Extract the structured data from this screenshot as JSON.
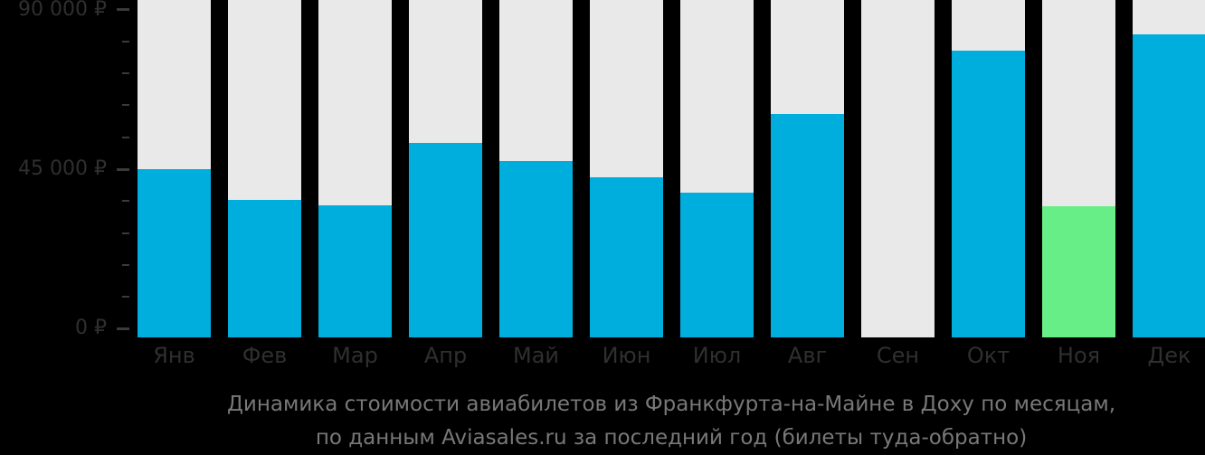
{
  "caption": {
    "line1": "Динамика стоимости авиабилетов из Франкфурта-на-Майне в Доху по месяцам,",
    "line2": "по данным Aviasales.ru за последний год (билеты туда-обратно)"
  },
  "chart_data": {
    "type": "bar",
    "title": "Динамика стоимости авиабилетов из Франкфурта-на-Майне в Доху по месяцам, по данным Aviasales.ru за последний год (билеты туда-обратно)",
    "categories": [
      "Янв",
      "Фев",
      "Мар",
      "Апр",
      "Май",
      "Июн",
      "Июл",
      "Авг",
      "Сен",
      "Окт",
      "Ноя",
      "Дек"
    ],
    "values": [
      45000,
      36400,
      34900,
      52500,
      47300,
      42700,
      38300,
      60600,
      null,
      78500,
      34500,
      83100
    ],
    "unit": "₽",
    "xlabel": "",
    "ylabel": "",
    "ylim": [
      0,
      92500
    ],
    "y_ticks": [
      {
        "value": 0,
        "label": "0 ₽"
      },
      {
        "value": 45000,
        "label": "45 000 ₽"
      },
      {
        "value": 90000,
        "label": "90 000 ₽"
      }
    ],
    "minor_tick_step": 9000,
    "grid": false,
    "legend": null,
    "highlight_month": "Ноя",
    "missing_months": [
      "Сен"
    ],
    "colors": {
      "background": "#000000",
      "bar": "#00aedd",
      "bar_highlight": "#68ee86",
      "bar_track": "#e9e9e9",
      "axis_label": "#2f2f2f",
      "axis_tick": "#3a3a3a",
      "caption_text": "#787878"
    }
  }
}
